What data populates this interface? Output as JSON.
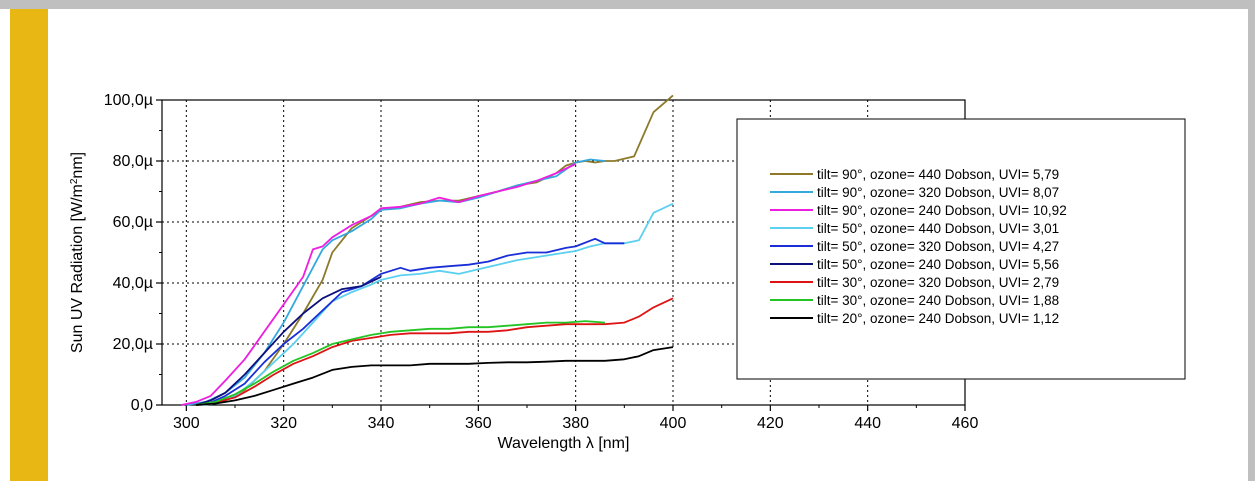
{
  "colors": {
    "accent": "#e8b714",
    "frame": "#bfbfbf"
  },
  "chart_data": {
    "type": "line",
    "xlabel": "Wavelength λ [nm]",
    "ylabel_main": "Sun UV Radiation [W/m",
    "ylabel_sup": "2",
    "ylabel_tail": "nm]",
    "xlim": [
      295,
      460
    ],
    "ylim": [
      0,
      100
    ],
    "xticks": [
      300,
      320,
      340,
      360,
      380,
      400,
      420,
      440,
      460
    ],
    "xtick_labels": [
      "300",
      "320",
      "340",
      "360",
      "380",
      "400",
      "420",
      "440",
      "460"
    ],
    "yticks": [
      0,
      20,
      40,
      60,
      80,
      100
    ],
    "ytick_labels": [
      "0,0",
      "20,0µ",
      "40,0µ",
      "60,0µ",
      "80,0µ",
      "100,0µ"
    ],
    "grid": true,
    "legend_position": "right",
    "series": [
      {
        "name": "tilt= 90°, ozone= 440 Dobson, UVI= 5,79",
        "color": "#8c7a2a",
        "x": [
          302,
          305,
          308,
          312,
          316,
          320,
          324,
          328,
          330,
          334,
          338,
          340,
          344,
          348,
          352,
          356,
          360,
          364,
          368,
          372,
          376,
          378,
          380,
          382,
          384,
          386,
          388,
          392,
          396,
          400
        ],
        "y": [
          0,
          0.3,
          1.5,
          5,
          11,
          20,
          30,
          41,
          50,
          58,
          62,
          64,
          65,
          66.5,
          67,
          67,
          68.5,
          70,
          72,
          73,
          76,
          78.5,
          79.5,
          80,
          79.5,
          80,
          80,
          81.5,
          96,
          101.5
        ]
      },
      {
        "name": "tilt= 90°, ozone= 320 Dobson, UVI= 8,07",
        "color": "#35a8e0",
        "x": [
          300,
          304,
          308,
          312,
          316,
          320,
          324,
          328,
          330,
          334,
          338,
          340,
          344,
          348,
          352,
          356,
          360,
          364,
          368,
          372,
          376,
          380,
          383,
          386
        ],
        "y": [
          0,
          1,
          4,
          9,
          17,
          27,
          39,
          51,
          54,
          57,
          61,
          64,
          64.5,
          66,
          67,
          66.5,
          68,
          70,
          72,
          73.5,
          75,
          79.5,
          80.5,
          80
        ]
      },
      {
        "name": "tilt= 90°, ozone= 240 Dobson, UVI= 10,92",
        "color": "#ee1ee0",
        "x": [
          299,
          302,
          305,
          308,
          312,
          316,
          320,
          324,
          326,
          328,
          330,
          334,
          338,
          340,
          344,
          348,
          352,
          356,
          360,
          364,
          368,
          372,
          376,
          380
        ],
        "y": [
          0,
          1,
          3,
          8,
          15,
          24,
          33,
          42,
          51,
          52,
          55,
          59,
          62,
          64.5,
          65,
          66,
          68,
          66.5,
          68.5,
          70,
          71.5,
          73.5,
          76,
          79
        ]
      },
      {
        "name": "tilt= 50°, ozone= 440 Dobson, UVI= 3,01",
        "color": "#5bd0f0",
        "x": [
          303,
          306,
          310,
          314,
          318,
          322,
          326,
          330,
          334,
          338,
          340,
          344,
          348,
          352,
          356,
          360,
          364,
          368,
          372,
          376,
          380,
          383,
          386,
          390,
          393,
          396,
          400
        ],
        "y": [
          0,
          0.5,
          3,
          8,
          14,
          20,
          27,
          34,
          37,
          39.5,
          41,
          42.5,
          43,
          44,
          43,
          44.5,
          46,
          47.5,
          48.5,
          49.5,
          50.5,
          52,
          53,
          53,
          54,
          63,
          66
        ]
      },
      {
        "name": "tilt= 50°, ozone= 320 Dobson, UVI= 4,27",
        "color": "#1a2ed8",
        "x": [
          302,
          305,
          308,
          312,
          316,
          320,
          324,
          328,
          332,
          336,
          340,
          344,
          346,
          350,
          354,
          358,
          362,
          366,
          370,
          374,
          378,
          380,
          384,
          386,
          390
        ],
        "y": [
          0,
          0.8,
          3,
          7,
          14,
          20,
          25,
          31,
          37,
          39,
          43,
          45,
          44,
          45,
          45.5,
          46,
          47,
          49,
          50,
          50,
          51.5,
          52,
          54.5,
          53,
          53
        ]
      },
      {
        "name": "tilt= 50°, ozone= 240 Dobson, UVI= 5,56",
        "color": "#0c107a",
        "x": [
          302,
          305,
          308,
          312,
          316,
          320,
          324,
          328,
          332,
          336,
          338,
          340
        ],
        "y": [
          0,
          1.5,
          4,
          10,
          17,
          24,
          30,
          35,
          38,
          39,
          40.5,
          42
        ]
      },
      {
        "name": "tilt= 30°, ozone= 320 Dobson, UVI= 2,79",
        "color": "#de1414",
        "x": [
          302,
          306,
          310,
          314,
          318,
          322,
          326,
          330,
          334,
          338,
          342,
          346,
          350,
          354,
          358,
          362,
          366,
          370,
          374,
          378,
          382,
          386,
          390,
          393,
          396,
          400
        ],
        "y": [
          0,
          0.8,
          2.5,
          6,
          10,
          13.5,
          16,
          19,
          21,
          22,
          23,
          23.5,
          23.5,
          23.5,
          24,
          24,
          24.5,
          25.5,
          26,
          26.5,
          26.5,
          26.5,
          27,
          29,
          32,
          35
        ]
      },
      {
        "name": "tilt= 30°, ozone= 240 Dobson, UVI= 1,88",
        "color": "#24c424",
        "x": [
          302,
          306,
          310,
          314,
          318,
          322,
          326,
          330,
          334,
          338,
          342,
          346,
          350,
          354,
          358,
          362,
          366,
          370,
          374,
          378,
          382,
          386
        ],
        "y": [
          0,
          1,
          3.5,
          7,
          11,
          14.5,
          17,
          20,
          21.5,
          23,
          24,
          24.5,
          25,
          25,
          25.5,
          25.5,
          26,
          26.5,
          27,
          27,
          27.5,
          27
        ]
      },
      {
        "name": "tilt= 20°, ozone= 240 Dobson, UVI= 1,12",
        "color": "#000000",
        "x": [
          302,
          306,
          310,
          314,
          318,
          322,
          326,
          330,
          334,
          338,
          342,
          346,
          350,
          354,
          358,
          362,
          366,
          370,
          374,
          378,
          382,
          386,
          390,
          393,
          396,
          400
        ],
        "y": [
          0,
          0.5,
          1.5,
          3,
          5,
          7,
          9,
          11.5,
          12.5,
          13,
          13,
          13,
          13.5,
          13.5,
          13.5,
          13.8,
          14,
          14,
          14.2,
          14.5,
          14.5,
          14.5,
          15,
          16,
          18,
          19
        ]
      }
    ]
  }
}
